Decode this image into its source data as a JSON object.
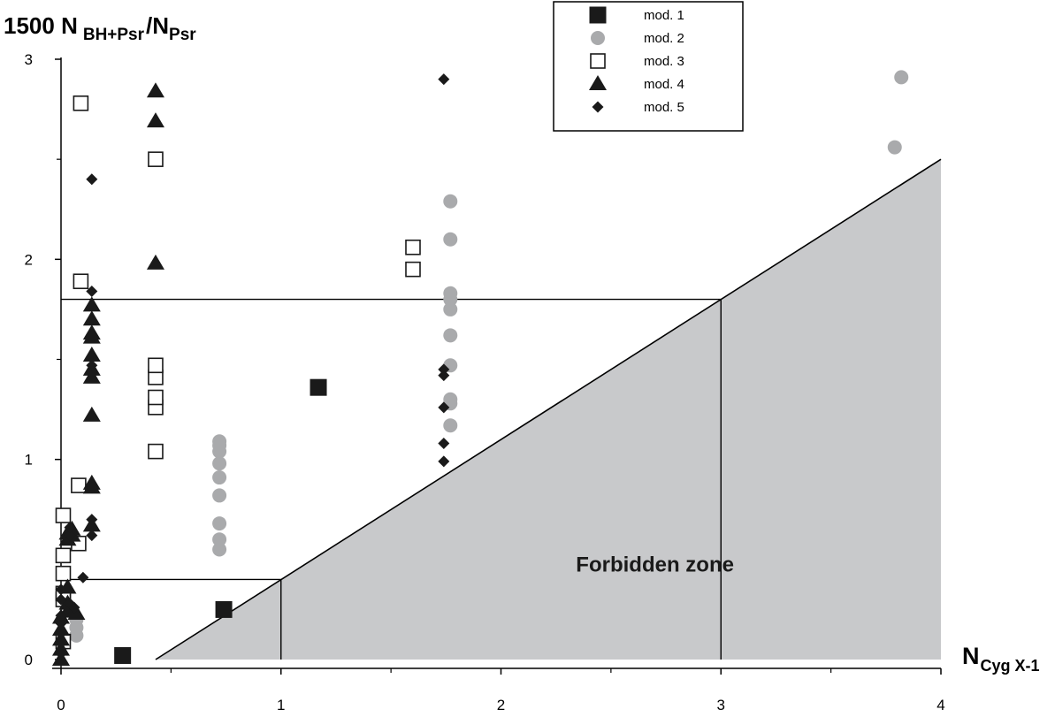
{
  "chart_data": {
    "type": "scatter",
    "ylabel": {
      "main": "1500 N",
      "sub1": "BH+Psr",
      "slash": "/N",
      "sub2": "Psr"
    },
    "xlabel": {
      "main": "N",
      "sub": "Cyg X-1"
    },
    "xlim": [
      0,
      4
    ],
    "ylim": [
      0,
      3
    ],
    "x_ticks": [
      "0",
      "1",
      "2",
      "3",
      "4"
    ],
    "y_ticks": [
      "0",
      "1",
      "2",
      "3"
    ],
    "grid": false,
    "legend_position": "top-right",
    "annotation": "Forbidden zone",
    "forbidden_zone": {
      "boundary": [
        [
          0.43,
          0
        ],
        [
          4,
          2.5
        ]
      ],
      "color": "#c8c9cb"
    },
    "reference_lines": [
      {
        "hline_y": 0.4,
        "x_to": 1.0,
        "vline_x": 1.0
      },
      {
        "hline_y": 1.8,
        "x_to": 3.0,
        "vline_x": 3.0
      }
    ],
    "series": [
      {
        "name": "mod. 1",
        "marker": "filled-square",
        "color": "#1a1a1a",
        "points": [
          [
            0.28,
            0.02
          ],
          [
            0.74,
            0.25
          ],
          [
            1.17,
            1.36
          ]
        ]
      },
      {
        "name": "mod. 2",
        "marker": "gray-circle",
        "color": "#a9aaac",
        "points": [
          [
            0.07,
            0.12
          ],
          [
            0.07,
            0.16
          ],
          [
            0.07,
            0.2
          ],
          [
            0.72,
            0.55
          ],
          [
            0.72,
            0.6
          ],
          [
            0.72,
            0.68
          ],
          [
            0.72,
            0.82
          ],
          [
            0.72,
            0.91
          ],
          [
            0.72,
            0.98
          ],
          [
            0.72,
            1.04
          ],
          [
            0.72,
            1.07
          ],
          [
            0.72,
            1.09
          ],
          [
            1.77,
            1.17
          ],
          [
            1.77,
            1.28
          ],
          [
            1.77,
            1.3
          ],
          [
            1.77,
            1.47
          ],
          [
            1.77,
            1.62
          ],
          [
            1.77,
            1.75
          ],
          [
            1.77,
            1.8
          ],
          [
            1.77,
            1.83
          ],
          [
            1.77,
            2.1
          ],
          [
            1.77,
            2.29
          ],
          [
            3.79,
            2.56
          ],
          [
            3.82,
            2.91
          ]
        ]
      },
      {
        "name": "mod. 3",
        "marker": "open-square",
        "color": "#1a1a1a",
        "points": [
          [
            0.01,
            0.09
          ],
          [
            0.01,
            0.3
          ],
          [
            0.01,
            0.33
          ],
          [
            0.01,
            0.43
          ],
          [
            0.01,
            0.52
          ],
          [
            0.01,
            0.72
          ],
          [
            0.08,
            0.58
          ],
          [
            0.08,
            0.87
          ],
          [
            0.09,
            1.89
          ],
          [
            0.09,
            2.78
          ],
          [
            0.43,
            1.04
          ],
          [
            0.43,
            1.26
          ],
          [
            0.43,
            1.31
          ],
          [
            0.43,
            1.41
          ],
          [
            0.43,
            1.47
          ],
          [
            0.43,
            2.5
          ],
          [
            1.6,
            1.95
          ],
          [
            1.6,
            2.06
          ]
        ]
      },
      {
        "name": "mod. 4",
        "marker": "filled-triangle",
        "color": "#1a1a1a",
        "points": [
          [
            0.0,
            0.0
          ],
          [
            0.0,
            0.05
          ],
          [
            0.0,
            0.1
          ],
          [
            0.0,
            0.15
          ],
          [
            0.0,
            0.21
          ],
          [
            0.03,
            0.24
          ],
          [
            0.03,
            0.28
          ],
          [
            0.03,
            0.36
          ],
          [
            0.03,
            0.6
          ],
          [
            0.03,
            0.63
          ],
          [
            0.05,
            0.62
          ],
          [
            0.05,
            0.65
          ],
          [
            0.07,
            0.23
          ],
          [
            0.14,
            0.67
          ],
          [
            0.14,
            0.86
          ],
          [
            0.14,
            0.88
          ],
          [
            0.14,
            1.22
          ],
          [
            0.14,
            1.41
          ],
          [
            0.14,
            1.45
          ],
          [
            0.14,
            1.52
          ],
          [
            0.14,
            1.61
          ],
          [
            0.14,
            1.63
          ],
          [
            0.14,
            1.7
          ],
          [
            0.14,
            1.77
          ],
          [
            0.43,
            1.98
          ],
          [
            0.43,
            2.69
          ],
          [
            0.43,
            2.84
          ]
        ]
      },
      {
        "name": "mod. 5",
        "marker": "filled-diamond",
        "color": "#1a1a1a",
        "points": [
          [
            0.0,
            0.03
          ],
          [
            0.0,
            0.08
          ],
          [
            0.0,
            0.13
          ],
          [
            0.0,
            0.18
          ],
          [
            0.0,
            0.22
          ],
          [
            0.0,
            0.3
          ],
          [
            0.0,
            0.35
          ],
          [
            0.04,
            0.28
          ],
          [
            0.04,
            0.62
          ],
          [
            0.04,
            0.66
          ],
          [
            0.06,
            0.26
          ],
          [
            0.1,
            0.41
          ],
          [
            0.14,
            0.62
          ],
          [
            0.14,
            0.7
          ],
          [
            0.14,
            0.86
          ],
          [
            0.14,
            1.47
          ],
          [
            0.14,
            1.84
          ],
          [
            0.14,
            2.4
          ],
          [
            1.74,
            0.99
          ],
          [
            1.74,
            1.08
          ],
          [
            1.74,
            1.26
          ],
          [
            1.74,
            1.42
          ],
          [
            1.74,
            1.45
          ],
          [
            1.74,
            2.9
          ]
        ]
      }
    ]
  }
}
